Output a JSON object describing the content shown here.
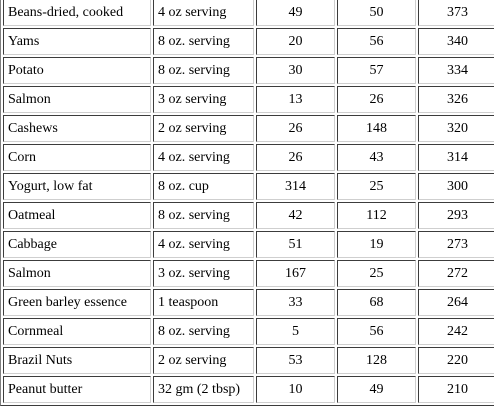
{
  "rows": [
    {
      "food": "Beans-dried, cooked",
      "serving": "4 oz serving",
      "c1": "49",
      "c2": "50",
      "c3": "373"
    },
    {
      "food": "Yams",
      "serving": "8 oz. serving",
      "c1": "20",
      "c2": "56",
      "c3": "340"
    },
    {
      "food": "Potato",
      "serving": "8 oz. serving",
      "c1": "30",
      "c2": "57",
      "c3": "334"
    },
    {
      "food": "Salmon",
      "serving": "3 oz serving",
      "c1": "13",
      "c2": "26",
      "c3": "326"
    },
    {
      "food": "Cashews",
      "serving": "2 oz serving",
      "c1": "26",
      "c2": "148",
      "c3": "320"
    },
    {
      "food": "Corn",
      "serving": "4 oz. serving",
      "c1": "26",
      "c2": "43",
      "c3": "314"
    },
    {
      "food": "Yogurt, low fat",
      "serving": "8 oz. cup",
      "c1": "314",
      "c2": "25",
      "c3": "300"
    },
    {
      "food": "Oatmeal",
      "serving": "8 oz. serving",
      "c1": "42",
      "c2": "112",
      "c3": "293"
    },
    {
      "food": "Cabbage",
      "serving": "4 oz. serving",
      "c1": "51",
      "c2": "19",
      "c3": "273"
    },
    {
      "food": "Salmon",
      "serving": "3 oz. serving",
      "c1": "167",
      "c2": "25",
      "c3": "272"
    },
    {
      "food": "Green barley essence",
      "serving": "1 teaspoon",
      "c1": "33",
      "c2": "68",
      "c3": "264"
    },
    {
      "food": "Cornmeal",
      "serving": "8 oz. serving",
      "c1": "5",
      "c2": "56",
      "c3": "242"
    },
    {
      "food": "Brazil Nuts",
      "serving": "2 oz serving",
      "c1": "53",
      "c2": "128",
      "c3": "220"
    },
    {
      "food": "Peanut butter",
      "serving": "32 gm (2 tbsp)",
      "c1": "10",
      "c2": "49",
      "c3": "210"
    }
  ]
}
